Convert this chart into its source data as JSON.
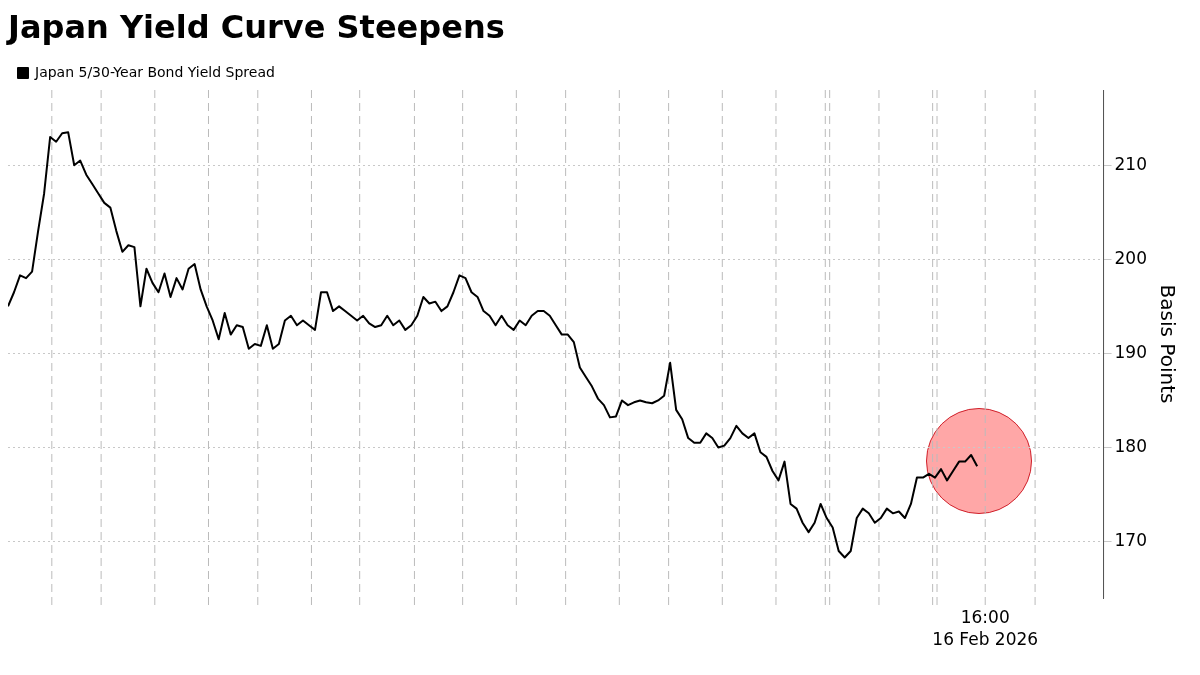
{
  "chart_data": {
    "type": "line",
    "title": "Japan Yield Curve Steepens",
    "ylabel": "Basis Points",
    "legend": "top left",
    "grid": "y",
    "marker": "none",
    "line_style": "solid",
    "tick_labels": "y",
    "annotations": [
      "16:00\n16 Feb 2026"
    ],
    "categories": [
      null,
      null,
      null,
      null,
      null,
      null,
      null,
      null,
      null,
      null,
      null,
      null,
      null,
      null,
      null,
      null,
      null,
      null,
      null,
      null,
      null,
      null,
      null,
      null,
      null,
      null,
      null,
      null,
      null,
      null,
      null,
      null,
      null,
      null,
      null,
      null,
      null,
      null,
      null,
      null,
      null,
      null,
      null,
      null,
      null,
      null,
      null,
      null,
      null,
      null,
      null,
      null,
      null,
      null,
      null,
      null,
      null,
      null,
      null,
      null,
      null,
      null,
      null,
      null,
      null,
      null,
      null,
      null,
      null,
      null,
      null,
      null,
      null,
      null,
      null,
      null,
      null,
      null,
      null,
      null,
      null,
      null,
      null,
      null,
      null,
      null,
      null,
      null,
      null,
      null,
      null,
      null,
      null,
      null,
      null,
      null,
      null,
      null,
      null,
      null,
      null,
      null,
      null,
      null,
      null,
      null,
      null,
      null,
      null,
      null,
      null,
      null,
      null,
      null,
      null,
      null,
      null,
      null,
      null,
      null,
      null,
      null,
      null,
      null,
      null,
      null,
      null,
      null,
      null,
      null,
      null,
      null,
      null,
      null,
      null,
      null,
      null,
      null,
      null,
      null,
      null,
      null,
      null,
      null,
      null,
      null,
      null,
      null,
      null,
      null,
      null,
      null,
      null,
      null,
      null,
      null,
      null,
      null,
      null,
      null,
      null,
      null,
      null,
      null,
      null,
      null,
      null,
      null,
      null,
      null,
      null,
      null,
      null,
      null,
      null,
      null,
      null,
      null,
      null,
      null,
      null,
      null,
      null
    ],
    "ylim": [
      164,
      218
    ],
    "yticks": [
      170,
      180,
      190,
      200,
      210
    ],
    "series": [
      {
        "name": "Japan 5/30-Year Bond Yield Spread",
        "color": "#000000",
        "values": [
          195,
          196.5,
          198.3,
          198,
          198.7,
          203,
          207,
          213,
          212.5,
          213.4,
          213.5,
          210,
          210.5,
          209,
          208,
          207,
          206,
          205.5,
          203,
          200.8,
          201.5,
          201.3,
          195,
          199,
          197.5,
          196.5,
          198.5,
          196,
          198,
          196.8,
          199,
          199.5,
          196.8,
          195,
          193.5,
          191.5,
          194.3,
          192,
          193,
          192.8,
          190.5,
          191,
          190.8,
          193,
          190.5,
          191,
          193.5,
          194,
          193,
          193.5,
          193,
          192.5,
          196.5,
          196.5,
          194.5,
          195,
          194.5,
          194,
          193.5,
          194,
          193.2,
          192.8,
          193,
          194,
          193,
          193.5,
          192.5,
          193,
          194,
          196,
          195.3,
          195.5,
          194.5,
          195,
          196.5,
          198.3,
          198,
          196.5,
          196,
          194.5,
          194,
          193,
          194,
          193,
          192.5,
          193.5,
          193,
          194,
          194.5,
          194.5,
          194,
          193,
          192,
          192,
          191.2,
          188.5,
          187.5,
          186.5,
          185.2,
          184.5,
          183.2,
          183.3,
          185,
          184.5,
          184.8,
          185,
          184.8,
          184.7,
          185,
          185.5,
          189,
          184,
          183,
          181,
          180.5,
          180.5,
          181.5,
          181,
          180,
          180.2,
          181,
          182.3,
          181.5,
          181,
          181.5,
          179.5,
          179,
          177.5,
          176.5,
          178.5,
          174,
          173.5,
          172,
          171,
          172,
          174,
          172.5,
          171.5,
          169,
          168.3,
          169,
          172.5,
          173.5,
          173,
          172,
          172.5,
          173.5,
          173,
          173.2,
          172.5,
          174,
          176.8,
          176.8,
          177.2,
          176.8,
          177.7,
          176.5,
          177.5,
          178.5,
          178.5,
          179.2,
          178,
          null,
          null,
          null,
          null,
          null,
          null,
          null,
          null,
          null,
          null,
          null,
          null,
          null,
          null,
          null,
          null,
          null,
          null,
          null,
          null,
          null
        ]
      }
    ]
  }
}
